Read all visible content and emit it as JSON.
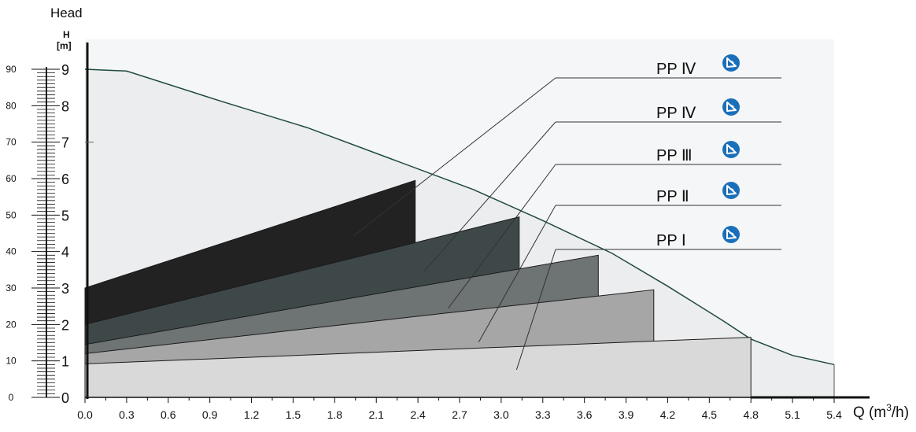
{
  "chart_data": {
    "type": "area",
    "title": "",
    "top_label": "Head",
    "left_axis_label": "H",
    "left_axis_unit": "[m]",
    "x_axis_label_prefix": "Q (m",
    "x_axis_label_sup": "3",
    "x_axis_label_suffix": "/h)",
    "xlim": [
      0,
      5.4
    ],
    "ylim_m": [
      0,
      9
    ],
    "ylim_secondary": [
      0,
      90
    ],
    "x_ticks": [
      "0.0",
      "0.3",
      "0.6",
      "0.9",
      "1.2",
      "1.5",
      "1.8",
      "2.1",
      "2.4",
      "2.7",
      "3.0",
      "3.3",
      "3.6",
      "3.9",
      "4.2",
      "4.5",
      "4.8",
      "5.1",
      "5.4"
    ],
    "y_ticks_m": [
      "0",
      "1",
      "2",
      "3",
      "4",
      "5",
      "6",
      "7",
      "8",
      "9"
    ],
    "y_ticks_secondary": [
      "0",
      "10",
      "20",
      "30",
      "40",
      "50",
      "60",
      "70",
      "80",
      "90"
    ],
    "envelope": {
      "x": [
        0.0,
        0.3,
        1.0,
        1.6,
        2.2,
        2.8,
        3.3,
        3.8,
        4.2,
        4.6,
        4.8,
        5.1,
        5.4
      ],
      "h": [
        9.0,
        8.95,
        8.1,
        7.4,
        6.55,
        5.7,
        4.85,
        3.95,
        3.05,
        2.1,
        1.6,
        1.15,
        0.9
      ]
    },
    "series": [
      {
        "name": "PP Ⅰ",
        "fill": "#d9d9d9",
        "h_at_zero": 0.92,
        "q_max": 4.8,
        "h_at_max": 1.65
      },
      {
        "name": "PP Ⅱ",
        "fill": "#a6a6a6",
        "h_at_zero": 1.2,
        "q_max": 4.1,
        "h_at_max": 2.95
      },
      {
        "name": "PP Ⅲ",
        "fill": "#6e7473",
        "h_at_zero": 1.45,
        "q_max": 3.7,
        "h_at_max": 3.9
      },
      {
        "name": "PP Ⅳ",
        "fill": "#3e4848",
        "h_at_zero": 2.0,
        "q_max": 3.13,
        "h_at_max": 4.95
      },
      {
        "name": "PP Ⅳ",
        "fill": "#222222",
        "h_at_zero": 3.0,
        "q_max": 2.38,
        "h_at_max": 5.95
      }
    ],
    "legend": [
      "PP Ⅳ",
      "PP Ⅳ",
      "PP Ⅲ",
      "PP Ⅱ",
      "PP Ⅰ"
    ],
    "legend_icon": "logo-icon",
    "colors": {
      "envelope_fill": "#ecedef",
      "envelope_line": "#1f4a3f",
      "axis": "#111111",
      "icon_blue": "#1a6fba",
      "leader_line": "#333333"
    }
  }
}
